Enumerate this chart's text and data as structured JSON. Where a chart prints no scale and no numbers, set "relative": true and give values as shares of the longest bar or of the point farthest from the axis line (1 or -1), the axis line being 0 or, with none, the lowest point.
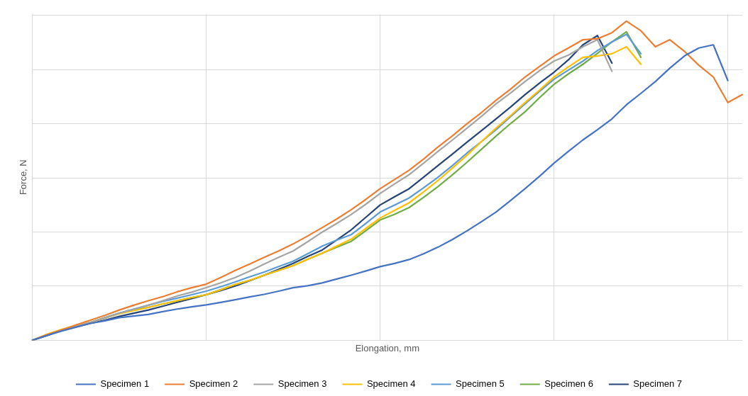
{
  "chart_data": {
    "type": "line",
    "relative": true,
    "xlabel": "Elongation, mm",
    "ylabel": "Force, N",
    "grid": true,
    "legend": "bottom",
    "marker": "none",
    "line_style": "solid",
    "categories": [
      null,
      null,
      null,
      null,
      null,
      null,
      null,
      null,
      null,
      null,
      null,
      null,
      null,
      null,
      null,
      null,
      null,
      null,
      null,
      null,
      null,
      null,
      null,
      null,
      null,
      null,
      null,
      null,
      null,
      null,
      null,
      null,
      null,
      null,
      null,
      null,
      null,
      null,
      null,
      null,
      null,
      null,
      null,
      null,
      null,
      null,
      null,
      null,
      null,
      null
    ],
    "series": [
      {
        "name": "Specimen 1",
        "color": "#4472c4",
        "values": [
          0,
          0.015,
          0.029,
          0.041,
          0.053,
          0.061,
          0.071,
          0.076,
          0.081,
          0.09,
          0.098,
          0.105,
          0.111,
          0.119,
          0.127,
          0.136,
          0.144,
          0.154,
          0.165,
          0.171,
          0.18,
          0.192,
          0.204,
          0.217,
          0.231,
          0.241,
          0.253,
          0.271,
          0.292,
          0.316,
          0.343,
          0.372,
          0.402,
          0.438,
          0.475,
          0.514,
          0.555,
          0.592,
          0.628,
          0.66,
          0.694,
          0.738,
          0.774,
          0.811,
          0.853,
          0.891,
          0.916,
          0.926,
          0.814,
          null
        ]
      },
      {
        "name": "Specimen 2",
        "color": "#ed7d31",
        "values": [
          0,
          0.017,
          0.032,
          0.048,
          0.063,
          0.078,
          0.095,
          0.11,
          0.124,
          0.137,
          0.152,
          0.165,
          0.176,
          0.197,
          0.219,
          0.239,
          0.26,
          0.28,
          0.302,
          0.327,
          0.353,
          0.38,
          0.409,
          0.441,
          0.475,
          0.504,
          0.533,
          0.568,
          0.606,
          0.641,
          0.679,
          0.714,
          0.752,
          0.787,
          0.825,
          0.858,
          0.891,
          0.916,
          0.942,
          0.945,
          0.964,
          1,
          0.97,
          0.92,
          0.942,
          0.906,
          0.862,
          0.825,
          0.745,
          0.77
        ]
      },
      {
        "name": "Specimen 3",
        "color": "#a5a5a5",
        "values": [
          0,
          0.017,
          0.032,
          0.044,
          0.056,
          0.07,
          0.085,
          0.097,
          0.11,
          0.124,
          0.139,
          0.151,
          0.165,
          0.18,
          0.197,
          0.217,
          0.239,
          0.26,
          0.28,
          0.309,
          0.339,
          0.366,
          0.394,
          0.426,
          0.46,
          0.49,
          0.519,
          0.555,
          0.592,
          0.628,
          0.665,
          0.702,
          0.741,
          0.775,
          0.811,
          0.845,
          0.875,
          0.894,
          0.92,
          0.942,
          0.843,
          null,
          null,
          null,
          null,
          null,
          null,
          null,
          null,
          null
        ]
      },
      {
        "name": "Specimen 4",
        "color": "#ffc000",
        "values": [
          0,
          0.019,
          0.034,
          0.046,
          0.056,
          0.07,
          0.083,
          0.093,
          0.103,
          0.114,
          0.124,
          0.134,
          0.143,
          0.158,
          0.175,
          0.188,
          0.204,
          0.219,
          0.234,
          0.254,
          0.273,
          0.295,
          0.317,
          0.35,
          0.383,
          0.407,
          0.431,
          0.465,
          0.501,
          0.54,
          0.58,
          0.623,
          0.665,
          0.704,
          0.745,
          0.784,
          0.825,
          0.857,
          0.887,
          0.891,
          0.898,
          0.92,
          0.865,
          null,
          null,
          null,
          null,
          null,
          null,
          null
        ]
      },
      {
        "name": "Specimen 5",
        "color": "#5b9bd5",
        "values": [
          0,
          0.017,
          0.032,
          0.044,
          0.056,
          0.071,
          0.085,
          0.098,
          0.11,
          0.122,
          0.132,
          0.143,
          0.154,
          0.168,
          0.183,
          0.199,
          0.214,
          0.231,
          0.248,
          0.271,
          0.295,
          0.314,
          0.331,
          0.366,
          0.402,
          0.424,
          0.446,
          0.478,
          0.511,
          0.548,
          0.587,
          0.623,
          0.66,
          0.701,
          0.741,
          0.78,
          0.818,
          0.847,
          0.875,
          0.908,
          0.935,
          0.959,
          0.898,
          null,
          null,
          null,
          null,
          null,
          null,
          null
        ]
      },
      {
        "name": "Specimen 6",
        "color": "#70ad47",
        "values": [
          null,
          null,
          null,
          0.044,
          0.056,
          0.07,
          0.085,
          0.095,
          0.103,
          0.114,
          0.124,
          0.134,
          0.143,
          0.159,
          0.175,
          0.188,
          0.204,
          0.219,
          0.234,
          0.254,
          0.273,
          0.292,
          0.31,
          0.343,
          0.377,
          0.395,
          0.416,
          0.448,
          0.482,
          0.519,
          0.558,
          0.599,
          0.64,
          0.679,
          0.716,
          0.76,
          0.802,
          0.835,
          0.865,
          0.899,
          0.935,
          0.967,
          0.887,
          null,
          null,
          null,
          null,
          null,
          null,
          null
        ]
      },
      {
        "name": "Specimen 7",
        "color": "#264478",
        "values": [
          0,
          0.015,
          0.031,
          0.042,
          0.053,
          0.063,
          0.075,
          0.085,
          0.095,
          0.107,
          0.119,
          0.131,
          0.143,
          0.156,
          0.17,
          0.187,
          0.204,
          0.222,
          0.241,
          0.263,
          0.283,
          0.314,
          0.346,
          0.385,
          0.424,
          0.45,
          0.475,
          0.511,
          0.548,
          0.584,
          0.621,
          0.657,
          0.694,
          0.731,
          0.77,
          0.806,
          0.84,
          0.879,
          0.926,
          0.955,
          0.869,
          null,
          null,
          null,
          null,
          null,
          null,
          null,
          null,
          null
        ]
      }
    ]
  }
}
